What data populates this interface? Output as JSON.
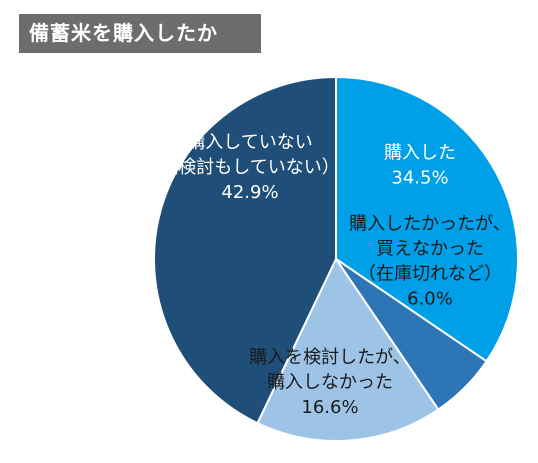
{
  "title": "備蓄米を購入したか",
  "chart_data": {
    "type": "pie",
    "title": "備蓄米を購入したか",
    "start_angle_deg": 0,
    "direction": "clockwise",
    "slices": [
      {
        "label_lines": [
          "購入した"
        ],
        "value_label": "34.5%",
        "value": 34.5,
        "color": "#00a0e9"
      },
      {
        "label_lines": [
          "購入したかったが、",
          "買えなかった",
          "（在庫切れなど）"
        ],
        "value_label": "6.0%",
        "value": 6.0,
        "color": "#2e75b6"
      },
      {
        "label_lines": [
          "購入を検討したが、",
          "購入しなかった"
        ],
        "value_label": "16.6%",
        "value": 16.6,
        "color": "#9dc3e6"
      },
      {
        "label_lines": [
          "購入していない",
          "（検討もしていない）"
        ],
        "value_label": "42.9%",
        "value": 42.9,
        "color": "#1f4e79"
      }
    ]
  }
}
